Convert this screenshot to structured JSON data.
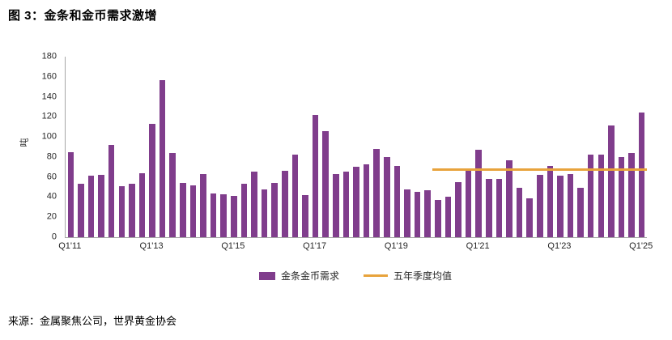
{
  "chart_data": {
    "type": "bar",
    "title": "图 3：金条和金币需求激增",
    "source": "来源：金属聚焦公司，世界黄金协会",
    "ylabel": "吨",
    "ylim": [
      0,
      180
    ],
    "ytick_interval": 20,
    "grid": false,
    "legend_position": "bottom",
    "categories": [
      "Q1'11",
      "Q2'11",
      "Q3'11",
      "Q4'11",
      "Q1'12",
      "Q2'12",
      "Q3'12",
      "Q4'12",
      "Q1'13",
      "Q2'13",
      "Q3'13",
      "Q4'13",
      "Q1'14",
      "Q2'14",
      "Q3'14",
      "Q4'14",
      "Q1'15",
      "Q2'15",
      "Q3'15",
      "Q4'15",
      "Q1'16",
      "Q2'16",
      "Q3'16",
      "Q4'16",
      "Q1'17",
      "Q2'17",
      "Q3'17",
      "Q4'17",
      "Q1'18",
      "Q2'18",
      "Q3'18",
      "Q4'18",
      "Q1'19",
      "Q2'19",
      "Q3'19",
      "Q4'19",
      "Q1'20",
      "Q2'20",
      "Q3'20",
      "Q4'20",
      "Q1'21",
      "Q2'21",
      "Q3'21",
      "Q4'21",
      "Q1'22",
      "Q2'22",
      "Q3'22",
      "Q4'22",
      "Q1'23",
      "Q2'23",
      "Q3'23",
      "Q4'23",
      "Q1'24",
      "Q2'24",
      "Q3'24",
      "Q4'24",
      "Q1'25"
    ],
    "x_tick_labels": [
      "Q1'11",
      "Q1'13",
      "Q1'15",
      "Q1'17",
      "Q1'19",
      "Q1'21",
      "Q1'23",
      "Q1'25"
    ],
    "series": [
      {
        "name": "金条金币需求",
        "type": "bar",
        "color": "#803D8C",
        "values": [
          85,
          53,
          61,
          62,
          92,
          51,
          53,
          64,
          113,
          157,
          84,
          54,
          52,
          63,
          44,
          43,
          41,
          53,
          65,
          48,
          54,
          66,
          82,
          42,
          122,
          106,
          63,
          65,
          70,
          73,
          88,
          80,
          71,
          48,
          45,
          47,
          37,
          40,
          55,
          66,
          87,
          58,
          58,
          77,
          49,
          39,
          62,
          71,
          61,
          63,
          49,
          82,
          82,
          111,
          80,
          84,
          124
        ]
      },
      {
        "name": "五年季度均值",
        "type": "line",
        "color": "#E8A33C",
        "value": 67,
        "span_start": "Q1'20",
        "span_end": "Q1'25"
      }
    ]
  }
}
